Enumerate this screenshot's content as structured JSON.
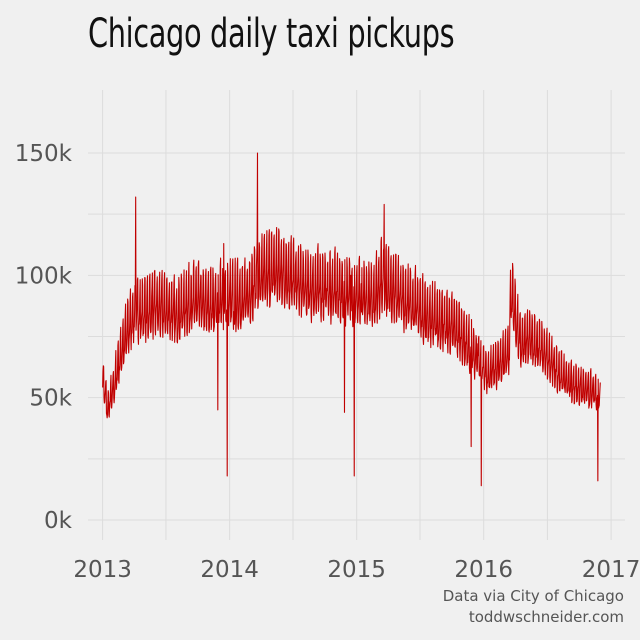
{
  "chart_data": {
    "type": "line",
    "title": "Chicago daily taxi pickups",
    "xlabel": "",
    "ylabel": "",
    "x_ticks": [
      "2013",
      "2014",
      "2015",
      "2016",
      "2017"
    ],
    "y_ticks": [
      "0k",
      "50k",
      "100k",
      "150k"
    ],
    "ylim": [
      0,
      170000
    ],
    "xlim": [
      "2012-11-20",
      "2017-02-10"
    ],
    "grid": true,
    "line_color": "#c00000",
    "series": [
      {
        "values": [
          [
            "2013-01-01",
            57000
          ],
          [
            "2013-01-15",
            44000
          ],
          [
            "2013-02-01",
            52000
          ],
          [
            "2013-02-15",
            62000
          ],
          [
            "2013-03-01",
            70000
          ],
          [
            "2013-03-15",
            76000
          ],
          [
            "2013-04-01",
            82000
          ],
          [
            "2013-04-06",
            132000
          ],
          [
            "2013-04-15",
            80000
          ],
          [
            "2013-05-01",
            83000
          ],
          [
            "2013-06-01",
            85000
          ],
          [
            "2013-07-01",
            84000
          ],
          [
            "2013-08-01",
            82000
          ],
          [
            "2013-09-01",
            86000
          ],
          [
            "2013-10-01",
            88000
          ],
          [
            "2013-11-01",
            85000
          ],
          [
            "2013-11-28",
            45000
          ],
          [
            "2013-12-01",
            88000
          ],
          [
            "2013-12-15",
            113000
          ],
          [
            "2013-12-25",
            18000
          ],
          [
            "2014-01-15",
            80000
          ],
          [
            "2014-02-15",
            88000
          ],
          [
            "2014-03-15",
            95000
          ],
          [
            "2014-03-22",
            150000
          ],
          [
            "2014-04-15",
            95000
          ],
          [
            "2014-05-15",
            100000
          ],
          [
            "2014-06-15",
            98000
          ],
          [
            "2014-07-15",
            95000
          ],
          [
            "2014-08-15",
            92000
          ],
          [
            "2014-09-15",
            93000
          ],
          [
            "2014-10-15",
            94000
          ],
          [
            "2014-11-27",
            44000
          ],
          [
            "2014-12-15",
            100000
          ],
          [
            "2014-12-25",
            18000
          ],
          [
            "2015-01-15",
            85000
          ],
          [
            "2015-02-15",
            88000
          ],
          [
            "2015-03-15",
            96000
          ],
          [
            "2015-03-21",
            129000
          ],
          [
            "2015-04-15",
            92000
          ],
          [
            "2015-05-15",
            88000
          ],
          [
            "2015-06-15",
            86000
          ],
          [
            "2015-07-15",
            82000
          ],
          [
            "2015-08-15",
            80000
          ],
          [
            "2015-09-15",
            78000
          ],
          [
            "2015-10-15",
            76000
          ],
          [
            "2015-11-26",
            30000
          ],
          [
            "2015-12-15",
            72000
          ],
          [
            "2015-12-25",
            14000
          ],
          [
            "2016-01-15",
            58000
          ],
          [
            "2016-02-15",
            62000
          ],
          [
            "2016-03-15",
            68000
          ],
          [
            "2016-03-19",
            92000
          ],
          [
            "2016-04-15",
            70000
          ],
          [
            "2016-05-15",
            72000
          ],
          [
            "2016-06-15",
            68000
          ],
          [
            "2016-07-15",
            62000
          ],
          [
            "2016-08-15",
            57000
          ],
          [
            "2016-09-15",
            54000
          ],
          [
            "2016-10-15",
            52000
          ],
          [
            "2016-11-24",
            16000
          ],
          [
            "2016-12-01",
            50000
          ]
        ]
      }
    ]
  },
  "caption": {
    "line1": "Data via City of Chicago",
    "line2": "toddwschneider.com"
  }
}
